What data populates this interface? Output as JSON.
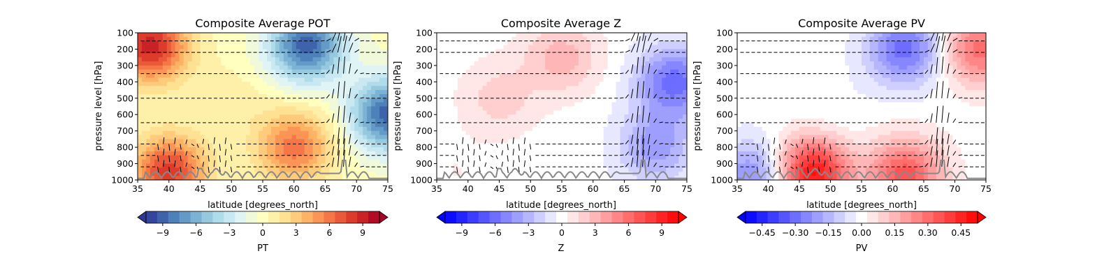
{
  "chart_data": [
    {
      "type": "heatmap",
      "title": "Composite Average POT",
      "xlabel": "latitude [degrees_north]",
      "ylabel": "pressure level [hPa]",
      "xlim": [
        35,
        75
      ],
      "ylim": [
        1000,
        100
      ],
      "x_ticks": [
        "35",
        "40",
        "45",
        "50",
        "55",
        "60",
        "65",
        "70",
        "75"
      ],
      "y_ticks": [
        "100",
        "200",
        "300",
        "400",
        "500",
        "600",
        "700",
        "800",
        "900",
        "1000"
      ],
      "colormap": "RdYlBu_r",
      "colorbar": {
        "label": "PT",
        "ticks": [
          "−9",
          "−6",
          "−3",
          "0",
          "3",
          "6",
          "9"
        ],
        "tick_values": [
          -9,
          -6,
          -3,
          0,
          3,
          6,
          9
        ],
        "range": [
          -10.5,
          10.5
        ],
        "extend": "both"
      },
      "field_features": [
        {
          "lat": 37,
          "p": 180,
          "value": 9
        },
        {
          "lat": 40,
          "p": 950,
          "value": 8
        },
        {
          "lat": 62,
          "p": 180,
          "value": -9
        },
        {
          "lat": 60,
          "p": 800,
          "value": 6
        },
        {
          "lat": 75,
          "p": 600,
          "value": -9
        },
        {
          "lat": 50,
          "p": 500,
          "value": 1
        }
      ],
      "overlay": {
        "quiver": true,
        "contour_line": true
      }
    },
    {
      "type": "heatmap",
      "title": "Composite Average Z",
      "xlabel": "latitude [degrees_north]",
      "ylabel": "pressure level [hPa]",
      "xlim": [
        35,
        75
      ],
      "ylim": [
        1000,
        100
      ],
      "x_ticks": [
        "35",
        "40",
        "45",
        "50",
        "55",
        "60",
        "65",
        "70",
        "75"
      ],
      "y_ticks": [
        "100",
        "200",
        "300",
        "400",
        "500",
        "600",
        "700",
        "800",
        "900",
        "1000"
      ],
      "colormap": "bwr",
      "colorbar": {
        "label": "Z",
        "ticks": [
          "−9",
          "−6",
          "−3",
          "0",
          "3",
          "6",
          "9"
        ],
        "tick_values": [
          -9,
          -6,
          -3,
          0,
          3,
          6,
          9
        ],
        "range": [
          -10.5,
          10.5
        ],
        "extend": "both"
      },
      "field_features": [
        {
          "lat": 55,
          "p": 250,
          "value": 3
        },
        {
          "lat": 45,
          "p": 500,
          "value": 2
        },
        {
          "lat": 73,
          "p": 400,
          "value": -6
        },
        {
          "lat": 70,
          "p": 800,
          "value": -4
        },
        {
          "lat": 38,
          "p": 950,
          "value": 0.5
        }
      ],
      "overlay": {
        "quiver": true,
        "contour_line": true
      }
    },
    {
      "type": "heatmap",
      "title": "Composite Average PV",
      "xlabel": "latitude [degrees_north]",
      "ylabel": "pressure level [hPa]",
      "xlim": [
        35,
        75
      ],
      "ylim": [
        1000,
        100
      ],
      "x_ticks": [
        "35",
        "40",
        "45",
        "50",
        "55",
        "60",
        "65",
        "70",
        "75"
      ],
      "y_ticks": [
        "100",
        "200",
        "300",
        "400",
        "500",
        "600",
        "700",
        "800",
        "900",
        "1000"
      ],
      "colormap": "bwr",
      "colorbar": {
        "label": "PV",
        "ticks": [
          "−0.45",
          "−0.30",
          "−0.15",
          "0.00",
          "0.15",
          "0.30",
          "0.45"
        ],
        "tick_values": [
          -0.45,
          -0.3,
          -0.15,
          0.0,
          0.15,
          0.3,
          0.45
        ],
        "range": [
          -0.525,
          0.525
        ],
        "extend": "both"
      },
      "field_features": [
        {
          "lat": 62,
          "p": 200,
          "value": -0.3
        },
        {
          "lat": 74,
          "p": 200,
          "value": 0.3
        },
        {
          "lat": 47,
          "p": 960,
          "value": 0.5
        },
        {
          "lat": 62,
          "p": 970,
          "value": 0.35
        },
        {
          "lat": 38,
          "p": 980,
          "value": -0.25
        },
        {
          "lat": 50,
          "p": 600,
          "value": -0.03
        }
      ],
      "overlay": {
        "quiver": true,
        "contour_line": true
      }
    }
  ]
}
